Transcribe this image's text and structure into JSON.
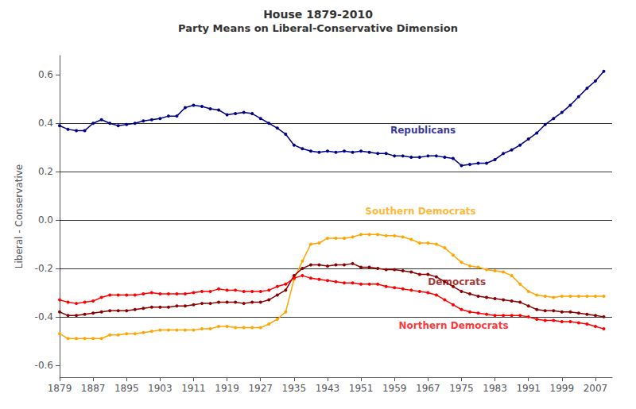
{
  "chart_data": {
    "type": "line",
    "title": "House 1879-2010",
    "subtitle": "Party Means on Liberal-Conservative Dimension",
    "y_label": "Liberal - Conservative",
    "xlim": [
      1879,
      2011
    ],
    "ylim": [
      -0.65,
      0.68
    ],
    "xticks": [
      1879,
      1887,
      1895,
      1903,
      1911,
      1919,
      1927,
      1935,
      1943,
      1951,
      1959,
      1967,
      1975,
      1983,
      1991,
      1999,
      2007
    ],
    "yticks": [
      -0.6,
      -0.4,
      -0.2,
      {
        "value": 0,
        "label": "0.0"
      },
      0.2,
      0.4,
      0.6
    ],
    "hlines": [
      -0.4,
      -0.2,
      0.0,
      0.2,
      0.4
    ],
    "marker": "circle",
    "x": [
      1879,
      1881,
      1883,
      1885,
      1887,
      1889,
      1891,
      1893,
      1895,
      1897,
      1899,
      1901,
      1903,
      1905,
      1907,
      1909,
      1911,
      1913,
      1915,
      1917,
      1919,
      1921,
      1923,
      1925,
      1927,
      1929,
      1931,
      1933,
      1935,
      1937,
      1939,
      1941,
      1943,
      1945,
      1947,
      1949,
      1951,
      1953,
      1955,
      1957,
      1959,
      1961,
      1963,
      1965,
      1967,
      1969,
      1971,
      1973,
      1975,
      1977,
      1979,
      1981,
      1983,
      1985,
      1987,
      1989,
      1991,
      1993,
      1995,
      1997,
      1999,
      2001,
      2003,
      2005,
      2007,
      2009
    ],
    "series": [
      {
        "name": "Republicans",
        "color": "#00008B",
        "values": [
          0.39,
          0.375,
          0.37,
          0.37,
          0.4,
          0.415,
          0.4,
          0.39,
          0.395,
          0.4,
          0.41,
          0.415,
          0.42,
          0.43,
          0.43,
          0.465,
          0.475,
          0.47,
          0.46,
          0.455,
          0.435,
          0.44,
          0.445,
          0.44,
          0.42,
          0.4,
          0.38,
          0.355,
          0.31,
          0.295,
          0.285,
          0.28,
          0.285,
          0.28,
          0.285,
          0.28,
          0.285,
          0.28,
          0.275,
          0.275,
          0.265,
          0.265,
          0.26,
          0.26,
          0.265,
          0.265,
          0.26,
          0.255,
          0.225,
          0.23,
          0.235,
          0.235,
          0.25,
          0.275,
          0.29,
          0.31,
          0.335,
          0.36,
          0.395,
          0.42,
          0.445,
          0.475,
          0.51,
          0.545,
          0.575,
          0.615
        ]
      },
      {
        "name": "Southern Democrats",
        "color": "#FFA500",
        "values": [
          -0.47,
          -0.49,
          -0.49,
          -0.49,
          -0.49,
          -0.49,
          -0.475,
          -0.475,
          -0.47,
          -0.47,
          -0.465,
          -0.46,
          -0.455,
          -0.455,
          -0.455,
          -0.455,
          -0.455,
          -0.45,
          -0.45,
          -0.44,
          -0.44,
          -0.445,
          -0.445,
          -0.445,
          -0.445,
          -0.43,
          -0.41,
          -0.38,
          -0.245,
          -0.17,
          -0.1,
          -0.095,
          -0.075,
          -0.075,
          -0.075,
          -0.07,
          -0.06,
          -0.06,
          -0.06,
          -0.065,
          -0.065,
          -0.07,
          -0.08,
          -0.095,
          -0.095,
          -0.1,
          -0.115,
          -0.145,
          -0.175,
          -0.19,
          -0.195,
          -0.205,
          -0.21,
          -0.215,
          -0.23,
          -0.265,
          -0.295,
          -0.31,
          -0.315,
          -0.32,
          -0.315,
          -0.315,
          -0.315,
          -0.315,
          -0.315,
          -0.315
        ]
      },
      {
        "name": "Democrats",
        "color": "#8B0000",
        "values": [
          -0.38,
          -0.395,
          -0.395,
          -0.39,
          -0.385,
          -0.38,
          -0.375,
          -0.375,
          -0.375,
          -0.37,
          -0.365,
          -0.36,
          -0.36,
          -0.36,
          -0.355,
          -0.355,
          -0.35,
          -0.345,
          -0.345,
          -0.34,
          -0.34,
          -0.34,
          -0.345,
          -0.34,
          -0.34,
          -0.33,
          -0.31,
          -0.29,
          -0.23,
          -0.2,
          -0.185,
          -0.185,
          -0.19,
          -0.185,
          -0.185,
          -0.18,
          -0.195,
          -0.195,
          -0.2,
          -0.205,
          -0.205,
          -0.21,
          -0.215,
          -0.225,
          -0.225,
          -0.235,
          -0.255,
          -0.275,
          -0.295,
          -0.305,
          -0.315,
          -0.32,
          -0.325,
          -0.33,
          -0.335,
          -0.34,
          -0.355,
          -0.37,
          -0.375,
          -0.375,
          -0.38,
          -0.38,
          -0.385,
          -0.39,
          -0.395,
          -0.4
        ]
      },
      {
        "name": "Northern Democrats",
        "color": "#FF0000",
        "values": [
          -0.33,
          -0.34,
          -0.345,
          -0.34,
          -0.335,
          -0.32,
          -0.31,
          -0.31,
          -0.31,
          -0.31,
          -0.305,
          -0.3,
          -0.305,
          -0.305,
          -0.305,
          -0.305,
          -0.3,
          -0.295,
          -0.295,
          -0.285,
          -0.29,
          -0.29,
          -0.295,
          -0.295,
          -0.295,
          -0.29,
          -0.275,
          -0.265,
          -0.24,
          -0.23,
          -0.24,
          -0.245,
          -0.25,
          -0.255,
          -0.26,
          -0.26,
          -0.265,
          -0.265,
          -0.265,
          -0.275,
          -0.28,
          -0.285,
          -0.29,
          -0.295,
          -0.3,
          -0.31,
          -0.33,
          -0.35,
          -0.37,
          -0.38,
          -0.385,
          -0.39,
          -0.395,
          -0.395,
          -0.395,
          -0.395,
          -0.4,
          -0.41,
          -0.415,
          -0.415,
          -0.42,
          -0.42,
          -0.425,
          -0.43,
          -0.44,
          -0.45
        ]
      }
    ],
    "annotations": [
      {
        "text": "Republicans",
        "x": 1958,
        "y": 0.37,
        "color": "#00008B"
      },
      {
        "text": "Southern Democrats",
        "x": 1952,
        "y": 0.035,
        "color": "#FFA500"
      },
      {
        "text": "Democrats",
        "x": 1967,
        "y": -0.255,
        "color": "#8B0000"
      },
      {
        "text": "Northern Democrats",
        "x": 1960,
        "y": -0.435,
        "color": "#FF0000"
      }
    ]
  }
}
